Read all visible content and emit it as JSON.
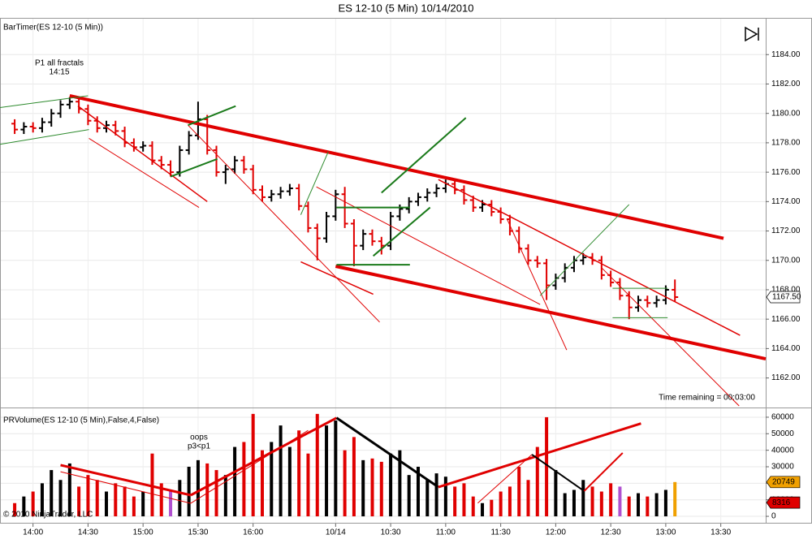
{
  "title": "ES 12-10 (5 Min)  10/14/2010",
  "chart_data": [
    {
      "type": "ohlc",
      "label": "BarTimer(ES 12-10 (5 Min))",
      "open": [
        1179.3,
        1178.9,
        1179.1,
        1179.0,
        1179.4,
        1180.0,
        1180.6,
        1180.8,
        1180.3,
        1179.5,
        1179.0,
        1179.2,
        1178.8,
        1178.0,
        1177.7,
        1177.8,
        1176.8,
        1176.5,
        1176.0,
        1177.5,
        1178.5,
        1179.6,
        1177.5,
        1176.0,
        1176.2,
        1176.8,
        1176.2,
        1174.8,
        1174.3,
        1174.5,
        1174.7,
        1174.9,
        1173.7,
        1172.2,
        1171.5,
        1173.0,
        1174.5,
        1172.5,
        1171.0,
        1171.8,
        1171.3,
        1171.0,
        1173.0,
        1173.5,
        1174.0,
        1174.3,
        1174.6,
        1174.9,
        1175.2,
        1174.8,
        1174.1,
        1173.6,
        1173.8,
        1173.3,
        1172.8,
        1172.0,
        1170.8,
        1170.0,
        1169.8,
        1168.3,
        1168.8,
        1169.5,
        1170.0,
        1170.2,
        1170.0,
        1169.0,
        1168.5,
        1167.6,
        1166.8,
        1167.3,
        1167.1,
        1167.3,
        1168.0
      ],
      "high": [
        1179.6,
        1179.4,
        1179.4,
        1179.7,
        1180.3,
        1180.9,
        1181.1,
        1181.1,
        1180.6,
        1179.8,
        1179.5,
        1179.5,
        1179.1,
        1178.3,
        1178.1,
        1178.1,
        1177.1,
        1176.8,
        1177.8,
        1178.8,
        1180.8,
        1179.9,
        1177.8,
        1176.5,
        1177.1,
        1177.1,
        1176.5,
        1175.1,
        1174.8,
        1175.0,
        1175.2,
        1175.2,
        1174.0,
        1172.5,
        1173.3,
        1174.8,
        1175.0,
        1172.8,
        1172.1,
        1172.1,
        1171.6,
        1173.3,
        1173.8,
        1174.3,
        1174.6,
        1174.9,
        1175.2,
        1175.5,
        1175.5,
        1175.1,
        1174.4,
        1174.1,
        1174.1,
        1173.6,
        1173.1,
        1172.3,
        1171.1,
        1170.3,
        1170.1,
        1169.1,
        1169.8,
        1170.3,
        1170.5,
        1170.5,
        1170.3,
        1169.3,
        1168.8,
        1167.9,
        1167.6,
        1167.6,
        1167.6,
        1168.3,
        1168.7
      ],
      "low": [
        1178.6,
        1178.6,
        1178.7,
        1178.7,
        1179.1,
        1179.7,
        1180.3,
        1180.0,
        1179.2,
        1178.7,
        1178.7,
        1178.5,
        1177.7,
        1177.4,
        1177.4,
        1176.5,
        1176.2,
        1175.7,
        1175.7,
        1177.2,
        1178.2,
        1177.2,
        1175.7,
        1175.2,
        1175.9,
        1175.9,
        1174.5,
        1174.0,
        1174.0,
        1174.2,
        1174.4,
        1173.4,
        1171.9,
        1170.0,
        1171.2,
        1172.7,
        1172.2,
        1169.6,
        1170.7,
        1171.0,
        1170.4,
        1170.7,
        1172.7,
        1173.2,
        1173.7,
        1174.0,
        1174.3,
        1174.6,
        1174.5,
        1173.8,
        1173.3,
        1173.3,
        1173.0,
        1172.5,
        1171.7,
        1170.5,
        1169.7,
        1169.5,
        1167.3,
        1168.0,
        1168.5,
        1169.2,
        1169.7,
        1169.7,
        1168.7,
        1168.2,
        1167.3,
        1166.0,
        1166.5,
        1166.8,
        1166.8,
        1167.0,
        1167.2
      ],
      "close": [
        1178.9,
        1179.1,
        1179.0,
        1179.4,
        1180.0,
        1180.6,
        1180.8,
        1180.3,
        1179.5,
        1179.0,
        1179.2,
        1178.8,
        1178.0,
        1177.7,
        1177.8,
        1176.8,
        1176.5,
        1176.0,
        1177.5,
        1178.5,
        1179.6,
        1177.5,
        1176.0,
        1176.2,
        1176.8,
        1176.2,
        1174.8,
        1174.3,
        1174.5,
        1174.7,
        1174.9,
        1173.7,
        1172.2,
        1171.5,
        1173.0,
        1174.5,
        1172.5,
        1171.0,
        1171.8,
        1171.3,
        1171.0,
        1173.0,
        1173.5,
        1174.0,
        1174.3,
        1174.6,
        1174.9,
        1175.2,
        1174.8,
        1174.1,
        1173.6,
        1173.8,
        1173.3,
        1172.8,
        1172.0,
        1170.8,
        1170.0,
        1169.8,
        1168.3,
        1168.8,
        1169.5,
        1170.0,
        1170.2,
        1170.0,
        1169.0,
        1168.5,
        1167.6,
        1166.8,
        1167.3,
        1167.1,
        1167.3,
        1168.0,
        1167.5
      ],
      "up_color": "#000000",
      "down_color": "#e00000",
      "xlim": [
        -1.6,
        81.9
      ],
      "ylim": [
        1160.1,
        1186.5
      ],
      "yticks": [
        {
          "value": 1162,
          "label": "1162.00"
        },
        {
          "value": 1164,
          "label": "1164.00"
        },
        {
          "value": 1166,
          "label": "1166.00"
        },
        {
          "value": 1168,
          "label": "1168.00"
        },
        {
          "value": 1170,
          "label": "1170.00"
        },
        {
          "value": 1172,
          "label": "1172.00"
        },
        {
          "value": 1174,
          "label": "1174.00"
        },
        {
          "value": 1176,
          "label": "1176.00"
        },
        {
          "value": 1178,
          "label": "1178.00"
        },
        {
          "value": 1180,
          "label": "1180.00"
        },
        {
          "value": 1182,
          "label": "1182.00"
        },
        {
          "value": 1184,
          "label": "1184.00"
        }
      ],
      "last_price": {
        "value": 1167.5,
        "label": "1167.50"
      },
      "annotations": [
        "P1 all fractals",
        "14:15",
        "Time remaining = 00:03:00"
      ],
      "lines": [
        {
          "color": "#e00000",
          "width": 4,
          "x": [
            6,
            77.3
          ],
          "y": [
            1181.2,
            1171.5
          ]
        },
        {
          "color": "#e00000",
          "width": 4,
          "x": [
            35,
            81.9
          ],
          "y": [
            1169.6,
            1163.3
          ]
        },
        {
          "color": "#e00000",
          "width": 1.5,
          "x": [
            6.9,
            21
          ],
          "y": [
            1180.5,
            1174.0
          ]
        },
        {
          "color": "#e00000",
          "width": 1,
          "x": [
            8.1,
            20.1
          ],
          "y": [
            1178.3,
            1173.6
          ]
        },
        {
          "color": "#e00000",
          "width": 1,
          "x": [
            18.9,
            39.8
          ],
          "y": [
            1179.2,
            1165.8
          ]
        },
        {
          "color": "#e00000",
          "width": 1.5,
          "x": [
            31.2,
            39.1
          ],
          "y": [
            1169.9,
            1167.7
          ]
        },
        {
          "color": "#e00000",
          "width": 1,
          "x": [
            32.9,
            57.3
          ],
          "y": [
            1175.0,
            1167.0
          ]
        },
        {
          "color": "#e00000",
          "width": 1.5,
          "x": [
            46.2,
            79.1
          ],
          "y": [
            1175.5,
            1164.9
          ]
        },
        {
          "color": "#e00000",
          "width": 1,
          "x": [
            53.7,
            60.2
          ],
          "y": [
            1172.8,
            1163.9
          ]
        },
        {
          "color": "#e00000",
          "width": 1,
          "x": [
            64.0,
            79.0
          ],
          "y": [
            1169.5,
            1160.1
          ]
        },
        {
          "color": "#2e8b2e",
          "width": 1,
          "x": [
            -1.6,
            8.0
          ],
          "y": [
            1180.4,
            1181.2
          ]
        },
        {
          "color": "#2e8b2e",
          "width": 1,
          "x": [
            -1.6,
            8.1
          ],
          "y": [
            1177.9,
            1178.9
          ]
        },
        {
          "color": "#1a7a1a",
          "width": 2,
          "x": [
            18.9,
            24.1
          ],
          "y": [
            1179.2,
            1180.5
          ]
        },
        {
          "color": "#1a7a1a",
          "width": 2,
          "x": [
            17.0,
            22.1
          ],
          "y": [
            1175.7,
            1176.9
          ]
        },
        {
          "color": "#1a7a1a",
          "width": 2,
          "x": [
            39.1,
            45.3
          ],
          "y": [
            1170.3,
            1173.6
          ]
        },
        {
          "color": "#1a7a1a",
          "width": 2,
          "x": [
            40.0,
            49.2
          ],
          "y": [
            1174.6,
            1179.7
          ]
        },
        {
          "color": "#1a7a1a",
          "width": 2,
          "x": [
            35.1,
            43.1
          ],
          "y": [
            1173.6,
            1173.6
          ]
        },
        {
          "color": "#1a7a1a",
          "width": 2,
          "x": [
            35.1,
            43.1
          ],
          "y": [
            1169.7,
            1169.7
          ]
        },
        {
          "color": "#2e8b2e",
          "width": 1,
          "x": [
            65.2,
            71.2
          ],
          "y": [
            1168.1,
            1168.1
          ]
        },
        {
          "color": "#2e8b2e",
          "width": 1,
          "x": [
            65.2,
            71.2
          ],
          "y": [
            1166.1,
            1166.1
          ]
        },
        {
          "color": "#2e8b2e",
          "width": 1,
          "x": [
            31.2,
            34.2
          ],
          "y": [
            1173.1,
            1177.4
          ]
        },
        {
          "color": "#2e8b2e",
          "width": 1,
          "x": [
            57.3,
            67.0
          ],
          "y": [
            1167.6,
            1173.8
          ]
        }
      ]
    },
    {
      "type": "bar",
      "label": "PRVolume(ES 12-10 (5 Min),False,4,False)",
      "values": [
        8000,
        12000,
        15000,
        20000,
        28000,
        22000,
        32000,
        18000,
        25000,
        22000,
        15000,
        20000,
        18000,
        12000,
        15000,
        38000,
        20000,
        16000,
        22000,
        30000,
        34000,
        32000,
        28000,
        25000,
        42000,
        45000,
        62000,
        40000,
        45000,
        55000,
        42000,
        52000,
        38000,
        62000,
        55000,
        58000,
        40000,
        48000,
        34000,
        35000,
        33000,
        38000,
        40000,
        25000,
        30000,
        22000,
        26000,
        24000,
        18000,
        20000,
        12000,
        8000,
        10000,
        15000,
        18000,
        30000,
        22000,
        42000,
        60000,
        28000,
        14000,
        16000,
        22000,
        18000,
        15000,
        20000,
        18000,
        12000,
        14000,
        12000,
        14000,
        16000,
        20749
      ],
      "colors": [
        "#e00000",
        "#000000",
        "#e00000",
        "#000000",
        "#000000",
        "#000000",
        "#000000",
        "#e00000",
        "#e00000",
        "#e00000",
        "#000000",
        "#e00000",
        "#e00000",
        "#e00000",
        "#000000",
        "#e00000",
        "#e00000",
        "#b050d0",
        "#000000",
        "#000000",
        "#000000",
        "#e00000",
        "#e00000",
        "#000000",
        "#000000",
        "#e00000",
        "#e00000",
        "#e00000",
        "#000000",
        "#000000",
        "#000000",
        "#e00000",
        "#e00000",
        "#e00000",
        "#000000",
        "#000000",
        "#e00000",
        "#e00000",
        "#000000",
        "#e00000",
        "#e00000",
        "#000000",
        "#000000",
        "#000000",
        "#000000",
        "#000000",
        "#000000",
        "#000000",
        "#e00000",
        "#e00000",
        "#e00000",
        "#000000",
        "#e00000",
        "#e00000",
        "#e00000",
        "#e00000",
        "#e00000",
        "#e00000",
        "#e00000",
        "#000000",
        "#000000",
        "#000000",
        "#000000",
        "#e00000",
        "#e00000",
        "#e00000",
        "#b050d0",
        "#e00000",
        "#000000",
        "#e00000",
        "#000000",
        "#000000",
        "#f0a000"
      ],
      "xlim": [
        -1.6,
        81.9
      ],
      "ylim": [
        -4400,
        64400
      ],
      "yticks": [
        0,
        10000,
        20000,
        30000,
        40000,
        50000,
        60000
      ],
      "xticks": [
        {
          "value": 2,
          "label": "14:00"
        },
        {
          "value": 8,
          "label": "14:30"
        },
        {
          "value": 14,
          "label": "15:00"
        },
        {
          "value": 20,
          "label": "15:30"
        },
        {
          "value": 26,
          "label": "16:00"
        },
        {
          "value": 35,
          "label": "10/14"
        },
        {
          "value": 41,
          "label": "10:30"
        },
        {
          "value": 47,
          "label": "11:00"
        },
        {
          "value": 53,
          "label": "11:30"
        },
        {
          "value": 59,
          "label": "12:00"
        },
        {
          "value": 65,
          "label": "12:30"
        },
        {
          "value": 71,
          "label": "13:00"
        },
        {
          "value": 77,
          "label": "13:30"
        }
      ],
      "markers": [
        {
          "value": 20749,
          "color": "#f0a000"
        },
        {
          "value": 8316,
          "color": "#e00000"
        }
      ],
      "annotations": [
        "oops",
        "p3<p1",
        "© 2010 NinjaTrader, LLC"
      ],
      "lines": [
        {
          "color": "#e00000",
          "width": 3,
          "x": [
            5.0,
            19.2
          ],
          "y": [
            31000,
            12800
          ]
        },
        {
          "color": "#e00000",
          "width": 1,
          "x": [
            5.0,
            19.2
          ],
          "y": [
            27000,
            7900
          ]
        },
        {
          "color": "#e00000",
          "width": 3,
          "x": [
            19.2,
            35.1
          ],
          "y": [
            12800,
            59600
          ]
        },
        {
          "color": "#e00000",
          "width": 1,
          "x": [
            19.2,
            32.0
          ],
          "y": [
            7900,
            52000
          ]
        },
        {
          "color": "#000000",
          "width": 3,
          "x": [
            35.1,
            46.2
          ],
          "y": [
            59600,
            17700
          ]
        },
        {
          "color": "#e00000",
          "width": 3,
          "x": [
            46.2,
            68.3
          ],
          "y": [
            17700,
            56200
          ]
        },
        {
          "color": "#e00000",
          "width": 1,
          "x": [
            50.5,
            56.4
          ],
          "y": [
            8000,
            37400
          ]
        },
        {
          "color": "#000000",
          "width": 2,
          "x": [
            56.4,
            62.1
          ],
          "y": [
            37400,
            15300
          ]
        },
        {
          "color": "#e00000",
          "width": 2,
          "x": [
            62.1,
            66.3
          ],
          "y": [
            15300,
            38400
          ]
        }
      ]
    }
  ]
}
